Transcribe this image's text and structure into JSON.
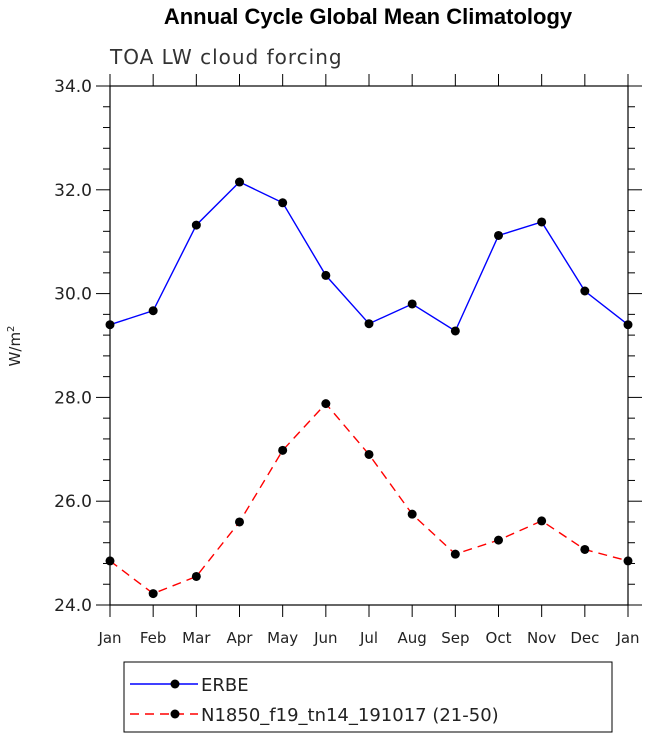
{
  "chart_data": {
    "type": "line",
    "title": "Annual Cycle Global Mean Climatology",
    "subtitle": "TOA LW cloud forcing",
    "ylabel_main": "W/m",
    "ylabel_sup": "2",
    "xlabel": "",
    "ylim": [
      24.0,
      34.0
    ],
    "yticks": [
      24.0,
      26.0,
      28.0,
      30.0,
      32.0,
      34.0
    ],
    "ytick_labels": [
      "24.0",
      "26.0",
      "28.0",
      "30.0",
      "32.0",
      "34.0"
    ],
    "categories": [
      "Jan",
      "Feb",
      "Mar",
      "Apr",
      "May",
      "Jun",
      "Jul",
      "Aug",
      "Sep",
      "Oct",
      "Nov",
      "Dec",
      "Jan"
    ],
    "legend_position": "bottom",
    "series": [
      {
        "name": "ERBE",
        "color": "#0000ff",
        "dash": "solid",
        "values": [
          29.4,
          29.67,
          31.32,
          32.15,
          31.75,
          30.35,
          29.42,
          29.8,
          29.28,
          31.12,
          31.38,
          30.05,
          29.4
        ]
      },
      {
        "name": "N1850_f19_tn14_191017 (21-50)",
        "color": "#ff0000",
        "dash": "dashed",
        "values": [
          24.85,
          24.22,
          24.55,
          25.6,
          26.98,
          27.88,
          26.9,
          25.75,
          24.98,
          25.25,
          25.62,
          25.07,
          24.85
        ]
      }
    ]
  }
}
